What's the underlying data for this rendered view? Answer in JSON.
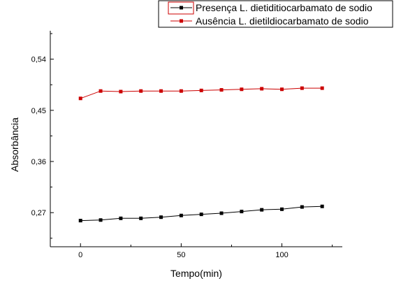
{
  "chart_data": {
    "type": "line",
    "title": "",
    "xlabel": "Tempo(min)",
    "ylabel": "Absorbância",
    "xlim": [
      -15,
      130
    ],
    "ylim": [
      0.21,
      0.59
    ],
    "xticks": [
      0,
      50,
      100
    ],
    "xtick_labels": [
      "0",
      "50",
      "100"
    ],
    "yticks": [
      0.27,
      0.36,
      0.45,
      0.54
    ],
    "ytick_labels": [
      "0,27",
      "0,36",
      "0,45",
      "0,54"
    ],
    "grid": false,
    "legend_position": "top-right",
    "x": [
      0,
      10,
      20,
      30,
      40,
      50,
      60,
      70,
      80,
      90,
      100,
      110,
      120
    ],
    "series": [
      {
        "name": "Presença L. dietiditiocarbamato de sodio",
        "color": "#000000",
        "marker": "square",
        "values": [
          0.256,
          0.257,
          0.26,
          0.26,
          0.262,
          0.265,
          0.267,
          0.269,
          0.272,
          0.275,
          0.276,
          0.28,
          0.281
        ]
      },
      {
        "name": "Ausência L. dietildiocarbamato de sodio",
        "color": "#cc0000",
        "marker": "square",
        "values": [
          0.471,
          0.484,
          0.483,
          0.484,
          0.484,
          0.484,
          0.485,
          0.486,
          0.487,
          0.488,
          0.487,
          0.489,
          0.489
        ]
      }
    ]
  }
}
